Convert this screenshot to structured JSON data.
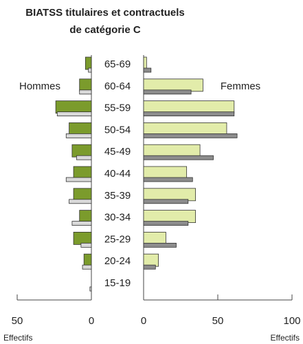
{
  "chart_data": {
    "type": "pyramid",
    "title": [
      "BIATSS titulaires et contractuels",
      "de catégorie C"
    ],
    "categories": [
      "65-69",
      "60-64",
      "55-59",
      "50-54",
      "45-49",
      "40-44",
      "35-39",
      "30-34",
      "25-29",
      "20-24",
      "15-19"
    ],
    "left_label": "Hommes",
    "right_label": "Femmes",
    "series": [
      {
        "name": "Hommes",
        "side": "left",
        "color": "#7b9b2c",
        "values": [
          4,
          8,
          24,
          15,
          13,
          12,
          12,
          8,
          12,
          5,
          0
        ]
      },
      {
        "side": "left",
        "color": "#d9d9d9",
        "values": [
          2,
          8,
          23,
          17,
          10,
          17,
          15,
          13,
          7,
          6,
          1
        ]
      },
      {
        "name": "Femmes",
        "side": "right",
        "color": "#e2ecaa",
        "values": [
          2,
          40,
          61,
          56,
          38,
          29,
          35,
          35,
          15,
          10,
          0
        ]
      },
      {
        "side": "right",
        "color": "#8c8c8c",
        "values": [
          5,
          32,
          61,
          63,
          47,
          33,
          30,
          30,
          22,
          8,
          0
        ]
      }
    ],
    "xlim_left": [
      0,
      50
    ],
    "xticks_left": [
      50,
      0
    ],
    "xlim_right": [
      0,
      100
    ],
    "xticks_right": [
      0,
      50,
      100
    ],
    "xlabel": "Effectifs"
  }
}
